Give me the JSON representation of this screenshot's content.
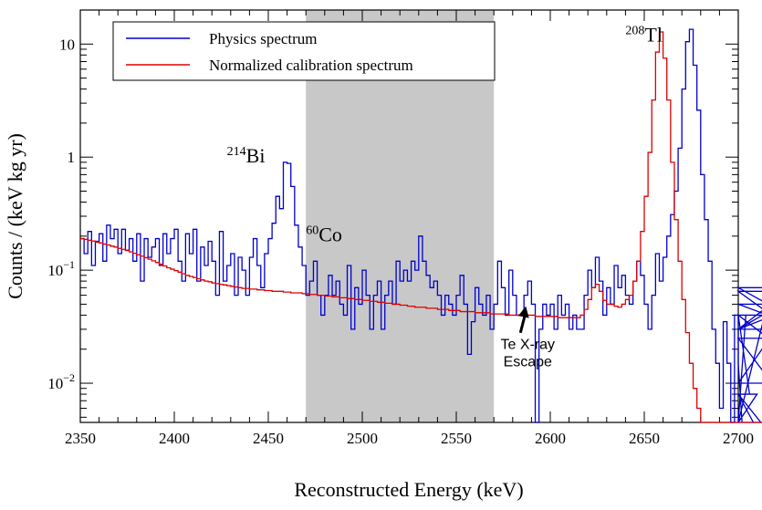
{
  "chart_data": {
    "type": "line",
    "subtype": "step-histogram",
    "xlabel": "Reconstructed Energy (keV)",
    "ylabel": "Counts / (keV kg yr)",
    "xlim": [
      2350,
      2700
    ],
    "ylim": [
      0.0045,
      20
    ],
    "yscale": "log",
    "grid": false,
    "legend_position": "top-left",
    "shaded_region": {
      "x": [
        2470,
        2570
      ],
      "color": "#c8c8c8"
    },
    "x_ticks": [
      "2350",
      "2400",
      "2450",
      "2500",
      "2550",
      "2600",
      "2650",
      "2700"
    ],
    "x_tick_values": [
      2350,
      2400,
      2450,
      2500,
      2550,
      2600,
      2650,
      2700
    ],
    "y_tick_labels": [
      {
        "value": 0.01,
        "base": "10",
        "exp": "−2"
      },
      {
        "value": 0.1,
        "base": "10",
        "exp": "−1"
      },
      {
        "value": 1,
        "base": "1",
        "exp": ""
      },
      {
        "value": 10,
        "base": "10",
        "exp": ""
      }
    ],
    "series": [
      {
        "name": "Physics spectrum",
        "color": "#0000cc",
        "x_start": 2350,
        "bin_width": 2,
        "values": [
          0.19,
          0.14,
          0.22,
          0.11,
          0.18,
          0.21,
          0.12,
          0.25,
          0.19,
          0.23,
          0.14,
          0.23,
          0.15,
          0.19,
          0.12,
          0.21,
          0.08,
          0.19,
          0.13,
          0.16,
          0.19,
          0.11,
          0.21,
          0.14,
          0.19,
          0.23,
          0.12,
          0.08,
          0.21,
          0.14,
          0.23,
          0.08,
          0.16,
          0.11,
          0.18,
          0.12,
          0.06,
          0.22,
          0.08,
          0.11,
          0.14,
          0.06,
          0.13,
          0.1,
          0.06,
          0.13,
          0.19,
          0.11,
          0.07,
          0.14,
          0.19,
          0.26,
          0.45,
          0.35,
          0.9,
          0.88,
          0.55,
          0.25,
          0.16,
          0.11,
          0.06,
          0.08,
          0.12,
          0.06,
          0.04,
          0.06,
          0.09,
          0.06,
          0.08,
          0.05,
          0.04,
          0.11,
          0.03,
          0.07,
          0.05,
          0.1,
          0.06,
          0.03,
          0.06,
          0.08,
          0.03,
          0.06,
          0.08,
          0.05,
          0.12,
          0.08,
          0.1,
          0.08,
          0.12,
          0.1,
          0.2,
          0.12,
          0.09,
          0.07,
          0.08,
          0.06,
          0.04,
          0.06,
          0.05,
          0.04,
          0.06,
          0.09,
          0.05,
          0.018,
          0.035,
          0.07,
          0.05,
          0.04,
          0.06,
          0.03,
          0.05,
          0.12,
          0.07,
          0.04,
          0.1,
          0.06,
          0.04,
          0.04,
          0.06,
          0.08,
          0.05,
          0.004,
          0.03,
          0.05,
          0.04,
          0.05,
          0.03,
          0.06,
          0.04,
          0.05,
          0.03,
          0.04,
          0.03,
          0.03,
          0.06,
          0.1,
          0.07,
          0.13,
          0.08,
          0.04,
          0.07,
          0.05,
          0.11,
          0.07,
          0.09,
          0.06,
          0.05,
          0.08,
          0.12,
          0.09,
          0.05,
          0.03,
          0.06,
          0.14,
          0.08,
          0.13,
          0.2,
          0.31,
          0.5,
          1.2,
          4.0,
          10.5,
          13.5,
          6.5,
          2.6,
          0.7,
          0.28,
          0.12,
          0.03,
          0.015,
          0.006,
          0.035,
          0.015,
          0.004,
          0.04,
          0.015,
          0.004,
          0.04,
          0.008,
          0.004,
          0.008,
          0.004,
          0.04,
          0.025,
          0.01,
          0.03,
          0.03,
          0.03,
          0.065,
          0.03,
          0.03,
          0.03,
          0.05,
          0.03,
          0.07,
          0.03,
          0.03
        ]
      },
      {
        "name": "Normalized calibration spectrum",
        "color": "#dd0000",
        "x_start": 2350,
        "bin_width": 2,
        "values": [
          0.19,
          0.187,
          0.184,
          0.181,
          0.177,
          0.174,
          0.17,
          0.167,
          0.163,
          0.16,
          0.156,
          0.153,
          0.149,
          0.145,
          0.141,
          0.137,
          0.133,
          0.129,
          0.125,
          0.121,
          0.117,
          0.113,
          0.109,
          0.105,
          0.102,
          0.099,
          0.096,
          0.093,
          0.09,
          0.088,
          0.086,
          0.084,
          0.082,
          0.08,
          0.079,
          0.077,
          0.076,
          0.075,
          0.074,
          0.073,
          0.072,
          0.071,
          0.07,
          0.069,
          0.069,
          0.068,
          0.068,
          0.067,
          0.067,
          0.066,
          0.066,
          0.065,
          0.065,
          0.065,
          0.064,
          0.064,
          0.063,
          0.063,
          0.063,
          0.062,
          0.062,
          0.061,
          0.061,
          0.06,
          0.06,
          0.059,
          0.059,
          0.058,
          0.058,
          0.057,
          0.057,
          0.056,
          0.056,
          0.055,
          0.055,
          0.054,
          0.054,
          0.053,
          0.053,
          0.052,
          0.052,
          0.051,
          0.051,
          0.05,
          0.05,
          0.049,
          0.049,
          0.048,
          0.048,
          0.047,
          0.047,
          0.047,
          0.046,
          0.046,
          0.046,
          0.045,
          0.045,
          0.045,
          0.044,
          0.044,
          0.044,
          0.043,
          0.043,
          0.043,
          0.043,
          0.042,
          0.042,
          0.042,
          0.042,
          0.041,
          0.041,
          0.041,
          0.041,
          0.041,
          0.04,
          0.04,
          0.04,
          0.04,
          0.04,
          0.04,
          0.04,
          0.039,
          0.039,
          0.039,
          0.039,
          0.039,
          0.039,
          0.038,
          0.038,
          0.038,
          0.038,
          0.038,
          0.038,
          0.04,
          0.045,
          0.055,
          0.07,
          0.075,
          0.065,
          0.054,
          0.05,
          0.05,
          0.048,
          0.047,
          0.05,
          0.055,
          0.06,
          0.08,
          0.12,
          0.22,
          0.45,
          1.1,
          3.2,
          8.5,
          12.8,
          7.5,
          3.2,
          0.9,
          0.28,
          0.12,
          0.055,
          0.028,
          0.015,
          0.009,
          0.006,
          0.004,
          0.002,
          0.001,
          0.0008,
          0.0005,
          0.0004,
          0.0003,
          0.0003,
          0.0002,
          0.0002,
          0.0001,
          0.0001,
          0.0001,
          0.0001,
          0.0001,
          0.0001,
          0.0001,
          0.0001,
          0.0001,
          0.0001,
          0.0001,
          0.0001,
          0.0001,
          0.0001,
          0.0001,
          0.0001
        ]
      }
    ],
    "annotations": [
      {
        "sup": "214",
        "text": "Bi",
        "x": 2428,
        "y": 0.9
      },
      {
        "sup": "60",
        "text": "Co",
        "x": 2470,
        "y": 0.18
      },
      {
        "sup": "208",
        "text": "Tl",
        "x": 2640,
        "y": 10.5
      }
    ],
    "arrow_annotation": {
      "lines": [
        "Te X-ray",
        "Escape"
      ],
      "arrow_to": {
        "x": 2587,
        "y": 0.048
      },
      "label_at": {
        "x": 2588,
        "y": 0.02
      }
    }
  }
}
